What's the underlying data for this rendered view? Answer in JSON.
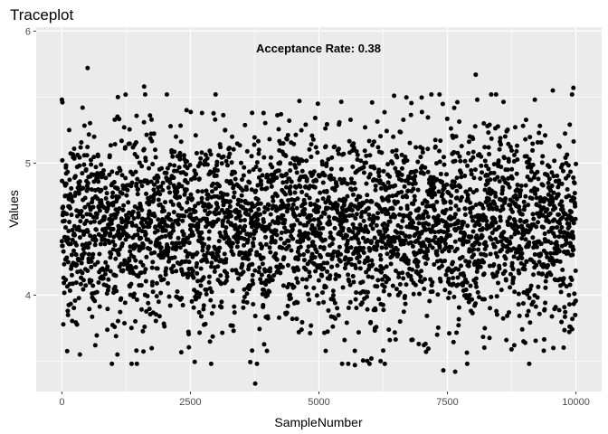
{
  "chart_data": {
    "type": "scatter",
    "title": "Traceplot",
    "xlabel": "SampleNumber",
    "ylabel": "Values",
    "annotation": "Acceptance Rate:  0.38",
    "xlim": [
      -500,
      10500
    ],
    "ylim": [
      3.27,
      6.03
    ],
    "x_ticks": [
      0,
      2500,
      5000,
      7500,
      10000
    ],
    "x_tick_labels": [
      "0",
      "2500",
      "5000",
      "7500",
      "10000"
    ],
    "y_ticks": [
      4,
      5,
      6
    ],
    "y_tick_labels": [
      "4",
      "5",
      "6"
    ],
    "grid": true,
    "panel_background": "#ebebeb",
    "grid_color": "#ffffff",
    "point_color": "#000000",
    "n_points": 10000,
    "series_summary": {
      "center": 4.52,
      "spread_sd": 0.36,
      "min": 3.33,
      "max": 5.72
    },
    "points": [
      [
        0,
        5.48
      ],
      [
        10,
        5.46
      ],
      [
        500,
        5.72
      ],
      [
        1600,
        5.58
      ],
      [
        1620,
        5.52
      ],
      [
        3700,
        5.38
      ],
      [
        4620,
        5.47
      ],
      [
        4980,
        5.45
      ],
      [
        8050,
        5.67
      ],
      [
        8080,
        5.48
      ],
      [
        9200,
        5.48
      ],
      [
        9550,
        5.55
      ],
      [
        9950,
        5.57
      ],
      [
        400,
        4.38
      ],
      [
        550,
        4.45
      ],
      [
        350,
        3.55
      ],
      [
        650,
        3.62
      ],
      [
        1080,
        3.55
      ],
      [
        1450,
        3.58
      ],
      [
        3340,
        3.73
      ],
      [
        3700,
        3.58
      ],
      [
        3760,
        3.33
      ],
      [
        5700,
        3.47
      ],
      [
        6020,
        3.52
      ],
      [
        6200,
        3.5
      ],
      [
        6250,
        3.58
      ],
      [
        7420,
        3.43
      ],
      [
        7650,
        3.42
      ],
      [
        8800,
        3.62
      ],
      [
        9560,
        3.6
      ],
      [
        9870,
        3.72
      ],
      [
        9890,
        3.76
      ],
      [
        9930,
        3.82
      ],
      [
        4380,
        5.18
      ],
      [
        2720,
        5.08
      ],
      [
        1900,
        3.84
      ],
      [
        6800,
        3.66
      ],
      [
        7300,
        3.7
      ],
      [
        8320,
        5.29
      ],
      [
        9400,
        5.21
      ]
    ]
  }
}
